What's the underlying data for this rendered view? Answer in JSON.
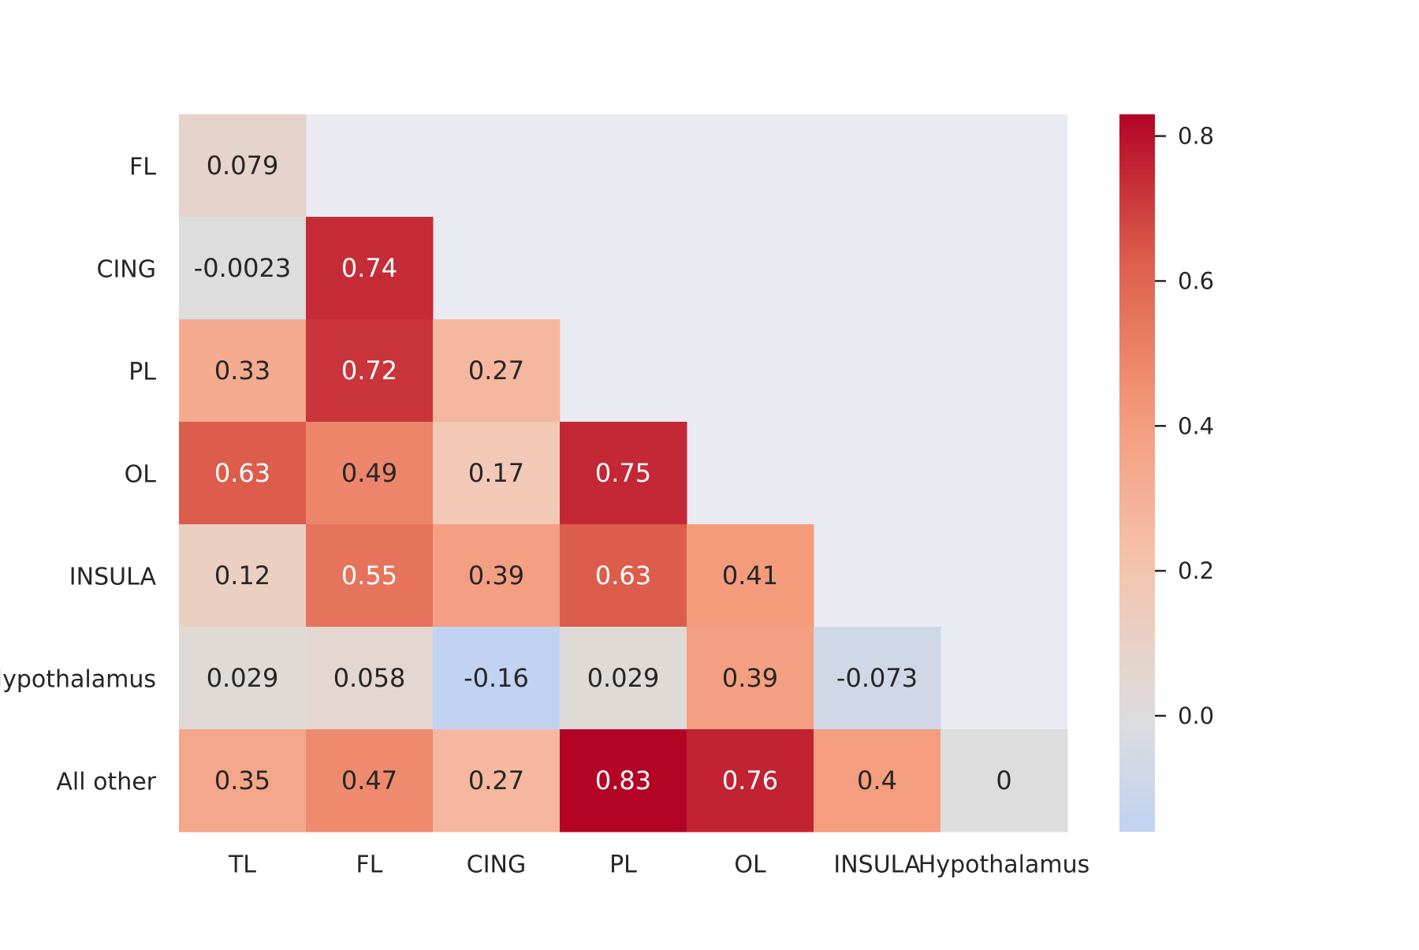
{
  "chart_data": {
    "type": "heatmap",
    "title": "",
    "xlabel": "",
    "ylabel": "",
    "x_categories": [
      "TL",
      "FL",
      "CING",
      "PL",
      "OL",
      "INSULA",
      "Hypothalamus"
    ],
    "y_categories": [
      "FL",
      "CING",
      "PL",
      "OL",
      "INSULA",
      "Hypothalamus",
      "All other"
    ],
    "values": [
      [
        0.079,
        null,
        null,
        null,
        null,
        null,
        null
      ],
      [
        -0.0023,
        0.74,
        null,
        null,
        null,
        null,
        null
      ],
      [
        0.33,
        0.72,
        0.27,
        null,
        null,
        null,
        null
      ],
      [
        0.63,
        0.49,
        0.17,
        0.75,
        null,
        null,
        null
      ],
      [
        0.12,
        0.55,
        0.39,
        0.63,
        0.41,
        null,
        null
      ],
      [
        0.029,
        0.058,
        -0.16,
        0.029,
        0.39,
        -0.073,
        null
      ],
      [
        0.35,
        0.47,
        0.27,
        0.83,
        0.76,
        0.4,
        0
      ]
    ],
    "annotations": [
      [
        "0.079",
        null,
        null,
        null,
        null,
        null,
        null
      ],
      [
        "-0.0023",
        "0.74",
        null,
        null,
        null,
        null,
        null
      ],
      [
        "0.33",
        "0.72",
        "0.27",
        null,
        null,
        null,
        null
      ],
      [
        "0.63",
        "0.49",
        "0.17",
        "0.75",
        null,
        null,
        null
      ],
      [
        "0.12",
        "0.55",
        "0.39",
        "0.63",
        "0.41",
        null,
        null
      ],
      [
        "0.029",
        "0.058",
        "-0.16",
        "0.029",
        "0.39",
        "-0.073",
        null
      ],
      [
        "0.35",
        "0.47",
        "0.27",
        "0.83",
        "0.76",
        "0.4",
        "0"
      ]
    ],
    "colormap": "coolwarm",
    "center": 0,
    "vmin": -0.16,
    "vmax": 0.83,
    "masked_color": "#eaeaf2",
    "colorbar": {
      "ticks": [
        0.0,
        0.2,
        0.4,
        0.6,
        0.8
      ],
      "tick_labels": [
        "0.0",
        "0.2",
        "0.4",
        "0.6",
        "0.8"
      ]
    },
    "grid": false,
    "legend": "colorbar-right"
  }
}
